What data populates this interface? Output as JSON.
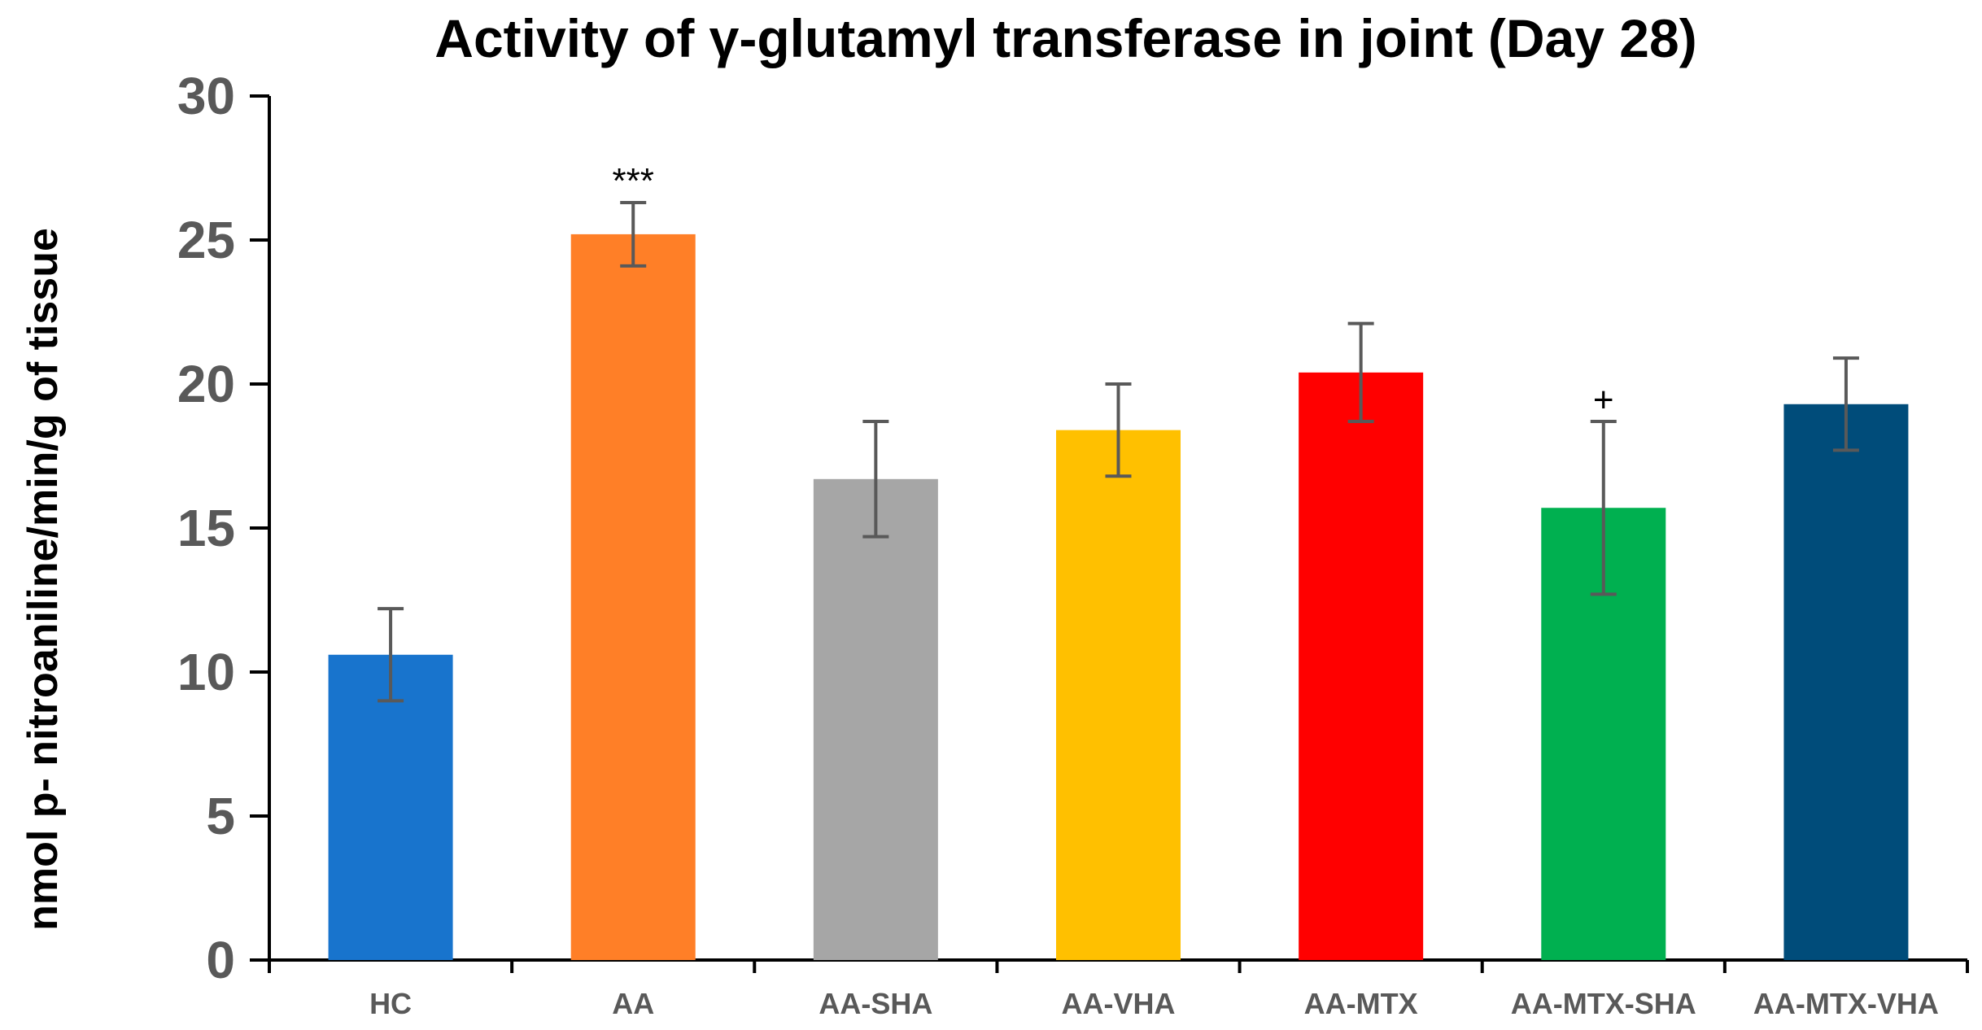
{
  "chart_data": {
    "type": "bar",
    "title": "Activity of γ-glutamyl  transferase in joint (Day 28)",
    "xlabel": "",
    "ylabel": "nmol p- nitroaniline/min/g of tissue",
    "categories": [
      "HC",
      "AA",
      "AA-SHA",
      "AA-VHA",
      "AA-MTX",
      "AA-MTX-SHA",
      "AA-MTX-VHA"
    ],
    "series": [
      {
        "values": [
          10.6,
          25.2,
          16.7,
          18.4,
          20.4,
          15.7,
          19.3
        ],
        "errors": [
          1.6,
          1.1,
          2.0,
          1.6,
          1.7,
          3.0,
          1.6
        ],
        "colors": [
          "#1874CD",
          "#FF7F27",
          "#A6A6A6",
          "#FFC000",
          "#FF0000",
          "#00B050",
          "#004C7A"
        ]
      }
    ],
    "annotations": [
      {
        "category": "AA",
        "text": "***"
      },
      {
        "category": "AA-MTX-SHA",
        "text": "+"
      }
    ],
    "ylim": [
      0,
      30
    ],
    "yticks": [
      0,
      5,
      10,
      15,
      20,
      25,
      30
    ],
    "grid": false,
    "axis_color": "#000000",
    "errorbar_color": "#595959"
  }
}
